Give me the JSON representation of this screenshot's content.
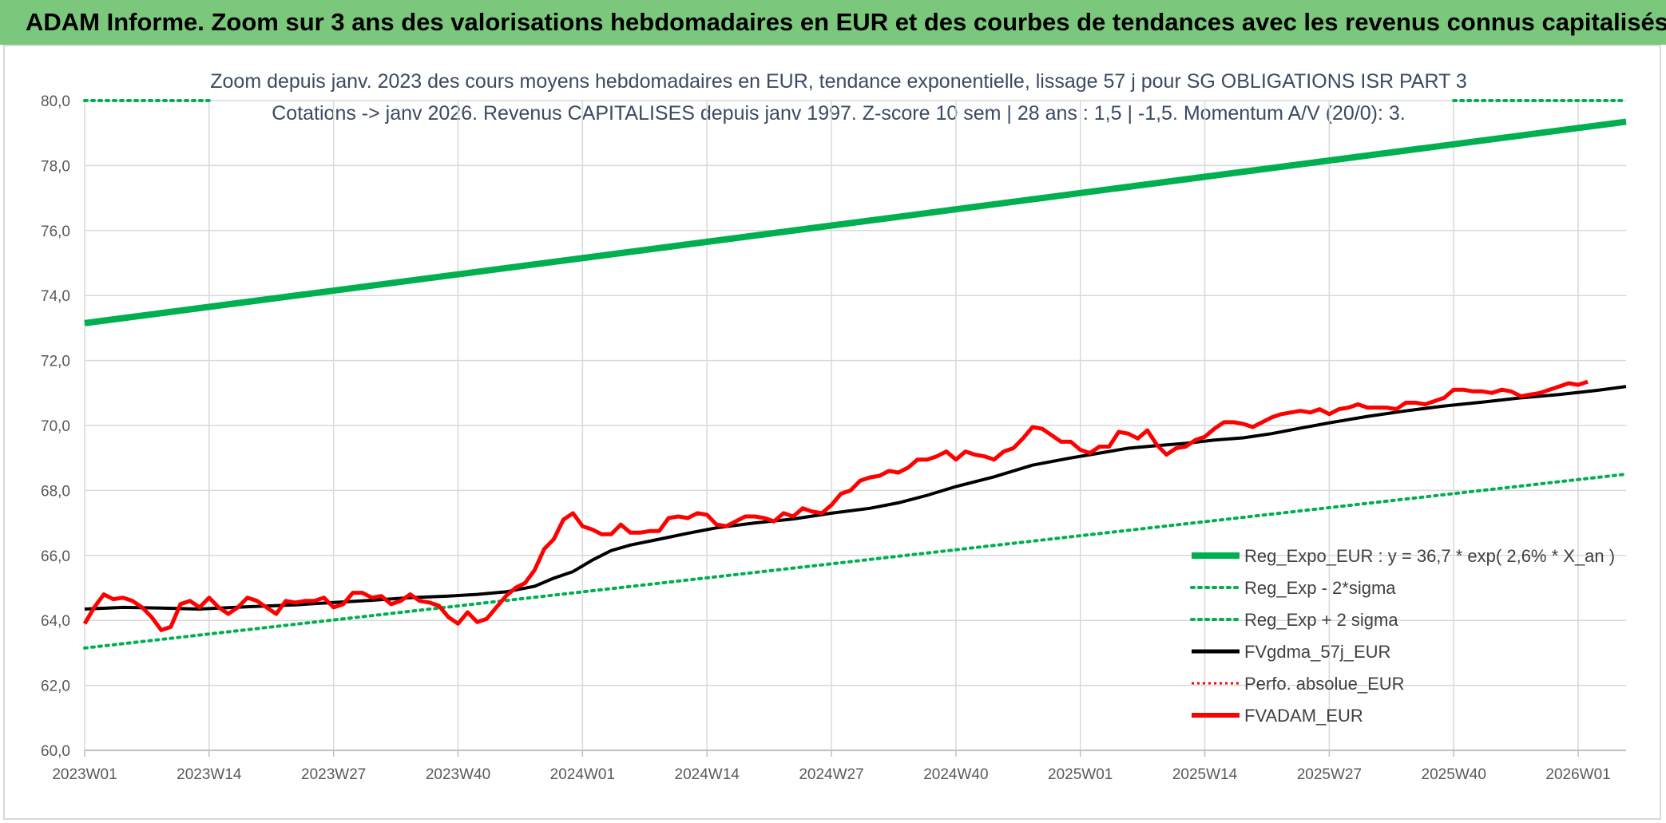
{
  "header": {
    "title": "ADAM Informe. Zoom sur 3 ans des valorisations hebdomadaires en EUR et des courbes de tendances avec les revenus connus capitalisés"
  },
  "colors": {
    "banner": "#7bc77b",
    "trend": "#00b050",
    "band": "#00b050",
    "ma": "#000000",
    "price": "#ff0000",
    "grid": "#d9d9d9"
  },
  "chart_data": {
    "type": "line",
    "subtitle_line1": "Zoom depuis janv. 2023 des cours moyens hebdomadaires en EUR, tendance exponentielle, lissage 57 j pour SG OBLIGATIONS ISR PART 3",
    "subtitle_line2": "Cotations -> janv 2026. Revenus CAPITALISES depuis janv 1997. Z-score 10 sem | 28 ans : 1,5 | -1,5. Momentum A/V (20/0): 3.",
    "ylim": [
      60,
      80
    ],
    "yticks": [
      "60,0",
      "62,0",
      "64,0",
      "66,0",
      "68,0",
      "70,0",
      "72,0",
      "74,0",
      "76,0",
      "78,0",
      "80,0"
    ],
    "yvalues": [
      60,
      62,
      64,
      66,
      68,
      70,
      72,
      74,
      76,
      78,
      80
    ],
    "xticks": [
      "2023W01",
      "2023W14",
      "2023W27",
      "2023W40",
      "2024W01",
      "2024W14",
      "2024W27",
      "2024W40",
      "2025W01",
      "2025W14",
      "2025W27",
      "2025W40",
      "2026W01"
    ],
    "n_weeks": 162,
    "legend": [
      {
        "label": "Reg_Expo_EUR : y = 36,7 * exp( 2,6% *  X_an )",
        "style": "trend"
      },
      {
        "label": "Reg_Exp - 2*sigma",
        "style": "dotted-green"
      },
      {
        "label": "Reg_Exp + 2 sigma",
        "style": "dotted-green"
      },
      {
        "label": "FVgdma_57j_EUR",
        "style": "ma"
      },
      {
        "label": "Perfo. absolue_EUR",
        "style": "dotted-red"
      },
      {
        "label": "FVADAM_EUR",
        "style": "price"
      }
    ],
    "series": [
      {
        "name": "Reg_Expo_EUR",
        "points": [
          [
            0,
            73.15
          ],
          [
            161,
            79.35
          ]
        ]
      },
      {
        "name": "Reg_Exp - 2*sigma",
        "points": [
          [
            0,
            63.15
          ],
          [
            161,
            68.5
          ]
        ]
      },
      {
        "name": "Reg_Exp + 2 sigma",
        "segments": [
          [
            [
              0,
              80.0
            ],
            [
              13,
              80.0
            ]
          ],
          [
            [
              143,
              80.0
            ],
            [
              161,
              80.0
            ]
          ]
        ]
      },
      {
        "name": "FVgdma_57j_EUR",
        "points": [
          [
            0,
            64.35
          ],
          [
            4,
            64.4
          ],
          [
            8,
            64.38
          ],
          [
            12,
            64.35
          ],
          [
            17,
            64.42
          ],
          [
            22,
            64.48
          ],
          [
            26,
            64.55
          ],
          [
            30,
            64.62
          ],
          [
            34,
            64.7
          ],
          [
            38,
            64.75
          ],
          [
            41,
            64.8
          ],
          [
            44,
            64.88
          ],
          [
            47,
            65.05
          ],
          [
            49,
            65.3
          ],
          [
            51,
            65.5
          ],
          [
            53,
            65.85
          ],
          [
            55,
            66.15
          ],
          [
            57,
            66.32
          ],
          [
            60,
            66.5
          ],
          [
            63,
            66.68
          ],
          [
            66,
            66.85
          ],
          [
            70,
            67.0
          ],
          [
            74,
            67.12
          ],
          [
            78,
            67.3
          ],
          [
            82,
            67.45
          ],
          [
            85,
            67.62
          ],
          [
            88,
            67.85
          ],
          [
            91,
            68.12
          ],
          [
            95,
            68.42
          ],
          [
            99,
            68.78
          ],
          [
            103,
            69.0
          ],
          [
            106,
            69.15
          ],
          [
            109,
            69.3
          ],
          [
            112,
            69.38
          ],
          [
            115,
            69.45
          ],
          [
            118,
            69.55
          ],
          [
            121,
            69.62
          ],
          [
            124,
            69.75
          ],
          [
            127,
            69.92
          ],
          [
            130,
            70.08
          ],
          [
            134,
            70.28
          ],
          [
            138,
            70.45
          ],
          [
            142,
            70.6
          ],
          [
            146,
            70.72
          ],
          [
            150,
            70.85
          ],
          [
            154,
            70.95
          ],
          [
            158,
            71.08
          ],
          [
            161,
            71.2
          ]
        ]
      },
      {
        "name": "FVADAM_EUR",
        "points": [
          [
            0,
            63.9
          ],
          [
            1,
            64.4
          ],
          [
            2,
            64.8
          ],
          [
            3,
            64.65
          ],
          [
            4,
            64.7
          ],
          [
            5,
            64.6
          ],
          [
            6,
            64.4
          ],
          [
            7,
            64.1
          ],
          [
            8,
            63.7
          ],
          [
            9,
            63.8
          ],
          [
            10,
            64.5
          ],
          [
            11,
            64.6
          ],
          [
            12,
            64.4
          ],
          [
            13,
            64.7
          ],
          [
            14,
            64.4
          ],
          [
            15,
            64.2
          ],
          [
            16,
            64.4
          ],
          [
            17,
            64.7
          ],
          [
            18,
            64.6
          ],
          [
            19,
            64.4
          ],
          [
            20,
            64.2
          ],
          [
            21,
            64.6
          ],
          [
            22,
            64.55
          ],
          [
            23,
            64.6
          ],
          [
            24,
            64.6
          ],
          [
            25,
            64.7
          ],
          [
            26,
            64.4
          ],
          [
            27,
            64.5
          ],
          [
            28,
            64.85
          ],
          [
            29,
            64.85
          ],
          [
            30,
            64.7
          ],
          [
            31,
            64.75
          ],
          [
            32,
            64.5
          ],
          [
            33,
            64.6
          ],
          [
            34,
            64.8
          ],
          [
            35,
            64.6
          ],
          [
            36,
            64.55
          ],
          [
            37,
            64.45
          ],
          [
            38,
            64.1
          ],
          [
            39,
            63.9
          ],
          [
            40,
            64.25
          ],
          [
            41,
            63.95
          ],
          [
            42,
            64.05
          ],
          [
            43,
            64.4
          ],
          [
            44,
            64.75
          ],
          [
            45,
            65.0
          ],
          [
            46,
            65.15
          ],
          [
            47,
            65.55
          ],
          [
            48,
            66.2
          ],
          [
            49,
            66.5
          ],
          [
            50,
            67.1
          ],
          [
            51,
            67.3
          ],
          [
            52,
            66.9
          ],
          [
            53,
            66.8
          ],
          [
            54,
            66.65
          ],
          [
            55,
            66.65
          ],
          [
            56,
            66.95
          ],
          [
            57,
            66.7
          ],
          [
            58,
            66.7
          ],
          [
            59,
            66.75
          ],
          [
            60,
            66.75
          ],
          [
            61,
            67.15
          ],
          [
            62,
            67.2
          ],
          [
            63,
            67.15
          ],
          [
            64,
            67.3
          ],
          [
            65,
            67.25
          ],
          [
            66,
            66.95
          ],
          [
            67,
            66.9
          ],
          [
            68,
            67.05
          ],
          [
            69,
            67.2
          ],
          [
            70,
            67.2
          ],
          [
            71,
            67.15
          ],
          [
            72,
            67.05
          ],
          [
            73,
            67.3
          ],
          [
            74,
            67.2
          ],
          [
            75,
            67.45
          ],
          [
            76,
            67.35
          ],
          [
            77,
            67.3
          ],
          [
            78,
            67.55
          ],
          [
            79,
            67.9
          ],
          [
            80,
            68.0
          ],
          [
            81,
            68.3
          ],
          [
            82,
            68.4
          ],
          [
            83,
            68.45
          ],
          [
            84,
            68.6
          ],
          [
            85,
            68.55
          ],
          [
            86,
            68.7
          ],
          [
            87,
            68.95
          ],
          [
            88,
            68.95
          ],
          [
            89,
            69.05
          ],
          [
            90,
            69.2
          ],
          [
            91,
            68.95
          ],
          [
            92,
            69.2
          ],
          [
            93,
            69.1
          ],
          [
            94,
            69.05
          ],
          [
            95,
            68.95
          ],
          [
            96,
            69.2
          ],
          [
            97,
            69.3
          ],
          [
            98,
            69.6
          ],
          [
            99,
            69.95
          ],
          [
            100,
            69.9
          ],
          [
            101,
            69.7
          ],
          [
            102,
            69.5
          ],
          [
            103,
            69.5
          ],
          [
            104,
            69.25
          ],
          [
            105,
            69.15
          ],
          [
            106,
            69.35
          ],
          [
            107,
            69.35
          ],
          [
            108,
            69.8
          ],
          [
            109,
            69.75
          ],
          [
            110,
            69.6
          ],
          [
            111,
            69.85
          ],
          [
            112,
            69.4
          ],
          [
            113,
            69.1
          ],
          [
            114,
            69.3
          ],
          [
            115,
            69.35
          ],
          [
            116,
            69.55
          ],
          [
            117,
            69.65
          ],
          [
            118,
            69.9
          ],
          [
            119,
            70.1
          ],
          [
            120,
            70.1
          ],
          [
            121,
            70.05
          ],
          [
            122,
            69.95
          ],
          [
            123,
            70.1
          ],
          [
            124,
            70.25
          ],
          [
            125,
            70.35
          ],
          [
            126,
            70.4
          ],
          [
            127,
            70.45
          ],
          [
            128,
            70.4
          ],
          [
            129,
            70.5
          ],
          [
            130,
            70.35
          ],
          [
            131,
            70.5
          ],
          [
            132,
            70.55
          ],
          [
            133,
            70.65
          ],
          [
            134,
            70.55
          ],
          [
            135,
            70.55
          ],
          [
            136,
            70.55
          ],
          [
            137,
            70.5
          ],
          [
            138,
            70.7
          ],
          [
            139,
            70.7
          ],
          [
            140,
            70.65
          ],
          [
            141,
            70.75
          ],
          [
            142,
            70.85
          ],
          [
            143,
            71.1
          ],
          [
            144,
            71.1
          ],
          [
            145,
            71.05
          ],
          [
            146,
            71.05
          ],
          [
            147,
            71.0
          ],
          [
            148,
            71.1
          ],
          [
            149,
            71.05
          ],
          [
            150,
            70.9
          ],
          [
            151,
            70.95
          ],
          [
            152,
            71.0
          ],
          [
            153,
            71.1
          ],
          [
            154,
            71.2
          ],
          [
            155,
            71.3
          ],
          [
            156,
            71.25
          ],
          [
            157,
            71.35
          ]
        ]
      }
    ]
  }
}
